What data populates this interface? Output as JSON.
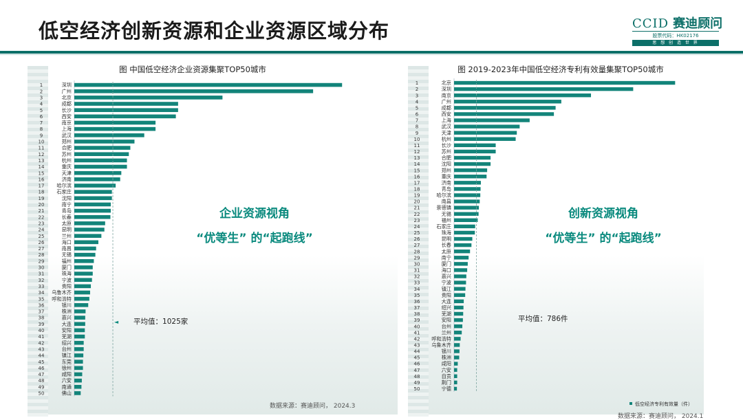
{
  "page": {
    "title": "低空经济创新资源和企业资源区域分布",
    "logo": {
      "name_en": "CCID",
      "name_cn": "赛迪顾问",
      "stock_code": "股票代码：HK02176",
      "slogan": "思 想 创 造 世 界"
    },
    "source_left": "数据来源：赛迪顾问，  2024.3",
    "source_right": "数据来源：赛迪顾问，  2024.1"
  },
  "colors": {
    "bar": "#13847a",
    "accent": "#0c6f68",
    "highlight": "#0a8a7e"
  },
  "chart_data": [
    {
      "type": "bar",
      "orientation": "horizontal",
      "title": "图  中国低空经济企业资源集聚TOP50城市",
      "ranks": [
        "1",
        "2",
        "3",
        "4",
        "5",
        "6",
        "7",
        "8",
        "9",
        "10",
        "11",
        "12",
        "13",
        "14",
        "15",
        "16",
        "17",
        "18",
        "19",
        "20",
        "21",
        "22",
        "23",
        "24",
        "25",
        "26",
        "27",
        "28",
        "29",
        "30",
        "31",
        "32",
        "33",
        "34",
        "35",
        "36",
        "37",
        "38",
        "39",
        "40",
        "41",
        "42",
        "43",
        "44",
        "45",
        "46",
        "47",
        "48",
        "49",
        "50"
      ],
      "categories": [
        "深圳",
        "广州",
        "北京",
        "成都",
        "长沙",
        "西安",
        "南京",
        "上海",
        "武汉",
        "郑州",
        "合肥",
        "苏州",
        "杭州",
        "重庆",
        "天津",
        "济南",
        "哈尔滨",
        "石家庄",
        "沈阳",
        "南宁",
        "青岛",
        "长春",
        "太原",
        "昆明",
        "兰州",
        "海口",
        "南昌",
        "无锡",
        "福州",
        "厦门",
        "珠海",
        "宁波",
        "贵阳",
        "乌鲁木齐",
        "呼和浩特",
        "银川",
        "株洲",
        "嘉兴",
        "大连",
        "安阳",
        "芜湖",
        "绍兴",
        "台州",
        "镇江",
        "东莞",
        "徐州",
        "咸阳",
        "六安",
        "南通",
        "佛山"
      ],
      "values": [
        7120,
        6350,
        3940,
        2760,
        2760,
        2700,
        2160,
        2160,
        1860,
        1600,
        1490,
        1450,
        1400,
        1400,
        1250,
        1220,
        1100,
        1000,
        1000,
        970,
        970,
        960,
        820,
        800,
        720,
        640,
        580,
        560,
        520,
        490,
        490,
        470,
        440,
        420,
        400,
        370,
        300,
        290,
        290,
        280,
        280,
        250,
        250,
        240,
        230,
        230,
        210,
        200,
        190,
        170
      ],
      "xlim": [
        0,
        7500
      ],
      "average": 1025,
      "average_label": "平均值：1025家",
      "annotation": {
        "line1": "企业资源视角",
        "line2": "“优等生”   的“起跑线”"
      }
    },
    {
      "type": "bar",
      "orientation": "horizontal",
      "title": "图  2019-2023年中国低空经济专利有效量集聚TOP50城市",
      "ranks": [
        "1",
        "2",
        "3",
        "4",
        "5",
        "6",
        "7",
        "8",
        "9",
        "10",
        "11",
        "12",
        "13",
        "14",
        "15",
        "16",
        "17",
        "18",
        "19",
        "20",
        "21",
        "22",
        "23",
        "24",
        "25",
        "26",
        "27",
        "28",
        "29",
        "30",
        "31",
        "32",
        "33",
        "34",
        "35",
        "36",
        "37",
        "38",
        "39",
        "40",
        "41",
        "42",
        "43",
        "44",
        "45",
        "46",
        "47",
        "48",
        "49",
        "50"
      ],
      "categories": [
        "北京",
        "深圳",
        "南京",
        "广州",
        "成都",
        "西安",
        "上海",
        "武汉",
        "天津",
        "杭州",
        "长沙",
        "苏州",
        "合肥",
        "沈阳",
        "郑州",
        "重庆",
        "济南",
        "青岛",
        "哈尔滨",
        "南昌",
        "景德镇",
        "无锡",
        "福州",
        "石家庄",
        "珠海",
        "昆明",
        "长春",
        "太原",
        "南宁",
        "厦门",
        "海口",
        "嘉兴",
        "宁波",
        "镇江",
        "贵阳",
        "大连",
        "绍兴",
        "芜湖",
        "安阳",
        "台州",
        "兰州",
        "呼和浩特",
        "乌鲁木齐",
        "银川",
        "株洲",
        "咸阳",
        "六安",
        "自贡",
        "荆门",
        "宁德"
      ],
      "values": [
        7750,
        6280,
        4800,
        3760,
        3560,
        3500,
        2650,
        2300,
        2200,
        2160,
        1460,
        1460,
        1280,
        1280,
        1160,
        1140,
        940,
        930,
        920,
        900,
        870,
        860,
        830,
        740,
        730,
        640,
        610,
        560,
        510,
        480,
        460,
        430,
        420,
        400,
        390,
        340,
        330,
        320,
        310,
        290,
        270,
        230,
        200,
        190,
        180,
        130,
        110,
        110,
        110,
        100
      ],
      "xlim": [
        0,
        8200
      ],
      "average": 786,
      "average_label": "平均值：786件",
      "legend": "低空经济专利有效量（件）",
      "legend_position": "bottom-right",
      "annotation": {
        "line1": "创新资源视角",
        "line2": "“优等生”   的“起跑线”"
      }
    }
  ]
}
